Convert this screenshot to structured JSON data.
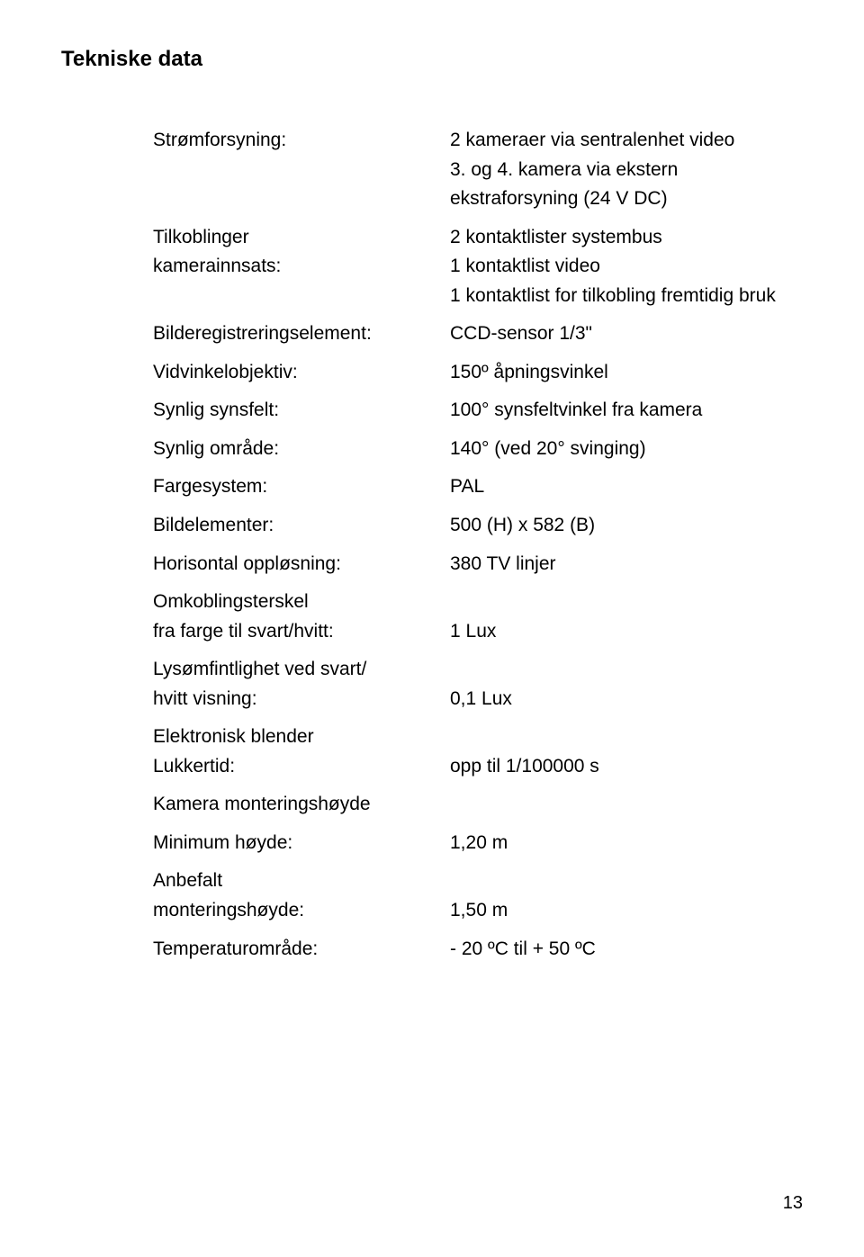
{
  "page": {
    "title": "Tekniske data",
    "pageNumber": "13"
  },
  "specs": {
    "stromforsyning": {
      "label": "Strømforsyning:",
      "value_line1": "2 kameraer via sentralenhet video",
      "value_line2": "3. og 4. kamera via ekstern ekstraforsyning (24 V DC)"
    },
    "tilkoblinger": {
      "label_line1": "Tilkoblinger",
      "label_line2": "kamerainnsats:",
      "value_line1": "2 kontaktlister systembus",
      "value_line2": "1 kontaktlist video",
      "value_line3": "1 kontaktlist for tilkobling fremtidig bruk"
    },
    "bilderegistrering": {
      "label": "Bilderegistreringselement:",
      "value": "CCD-sensor 1/3\""
    },
    "vidvinkel": {
      "label": "Vidvinkelobjektiv:",
      "value": "150º åpningsvinkel"
    },
    "synsfelt": {
      "label": "Synlig synsfelt:",
      "value": "100° synsfeltvinkel fra kamera"
    },
    "synligomrade": {
      "label": "Synlig område:",
      "value": "140° (ved 20° svinging)"
    },
    "fargesystem": {
      "label": "Fargesystem:",
      "value": "PAL"
    },
    "bildelementer": {
      "label": "Bildelementer:",
      "value": "500 (H) x 582 (B)"
    },
    "horisontal": {
      "label": "Horisontal oppløsning:",
      "value": "380 TV linjer"
    },
    "omkobling": {
      "label_line1": "Omkoblingsterskel",
      "label_line2": "fra farge til svart/hvitt:",
      "value": "1 Lux"
    },
    "lysomfintlighet": {
      "label_line1": "Lysømfintlighet ved svart/",
      "label_line2": "hvitt visning:",
      "value": "0,1 Lux"
    },
    "blender": {
      "label_line1": "Elektronisk blender",
      "label_line2": "Lukkertid:",
      "value": "opp til 1/100000 s"
    },
    "monteringshoyde_header": {
      "label": "Kamera monteringshøyde"
    },
    "minimum": {
      "label": "Minimum høyde:",
      "value": "1,20 m"
    },
    "anbefalt": {
      "label_line1": "Anbefalt",
      "label_line2": "monteringshøyde:",
      "value": "1,50 m"
    },
    "temperatur": {
      "label": "Temperaturområde:",
      "value": "- 20 ºC til + 50 ºC"
    }
  }
}
